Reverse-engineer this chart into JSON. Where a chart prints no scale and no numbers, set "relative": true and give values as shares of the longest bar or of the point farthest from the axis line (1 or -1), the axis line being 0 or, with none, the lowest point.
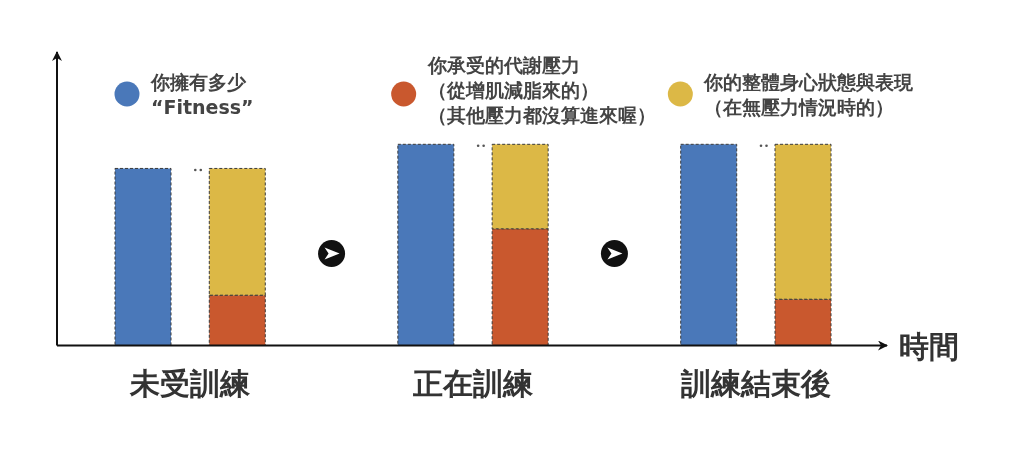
{
  "chart_data": {
    "type": "bar",
    "relative": true,
    "stacked": true,
    "legend": "top",
    "xlabel": "時間",
    "categories": [
      null,
      null,
      null,
      null,
      null,
      null
    ],
    "annotations": [
      "未受訓練",
      "正在訓練",
      "訓練結束後"
    ],
    "series": [
      {
        "name": "你擁有多少“Fitness”",
        "color": "#4a78b9",
        "values": [
          0.88,
          null,
          1,
          null,
          1,
          null
        ]
      },
      {
        "name": "你承受的代謝壓力（從增肌減脂來的）（其他壓力都沒算進來喔）",
        "color": "#c9582e",
        "values": [
          null,
          0.25,
          null,
          0.58,
          null,
          0.23
        ]
      },
      {
        "name": "你的整體身心狀態與表現（在無壓力情況時的）",
        "color": "#dcb846",
        "values": [
          null,
          0.63,
          null,
          0.42,
          null,
          0.77
        ]
      }
    ]
  }
}
